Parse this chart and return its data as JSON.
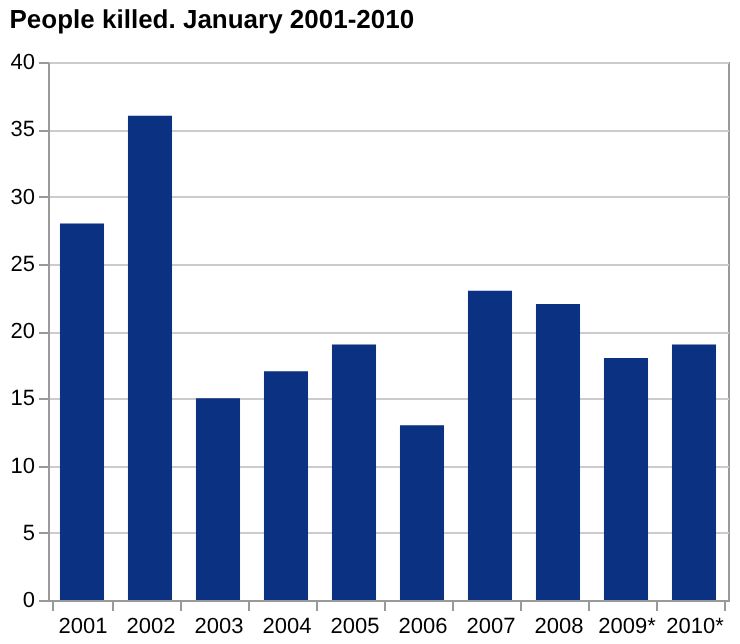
{
  "chart_data": {
    "type": "bar",
    "title": "People killed. January 2001-2010",
    "categories": [
      "2001",
      "2002",
      "2003",
      "2004",
      "2005",
      "2006",
      "2007",
      "2008",
      "2009*",
      "2010*"
    ],
    "values": [
      28,
      36,
      15,
      17,
      19,
      13,
      23,
      22,
      18,
      19
    ],
    "color": "#0a3182",
    "ylim": [
      0,
      40
    ],
    "yticks": [
      0,
      5,
      10,
      15,
      20,
      25,
      30,
      35,
      40
    ],
    "grid": "y"
  }
}
